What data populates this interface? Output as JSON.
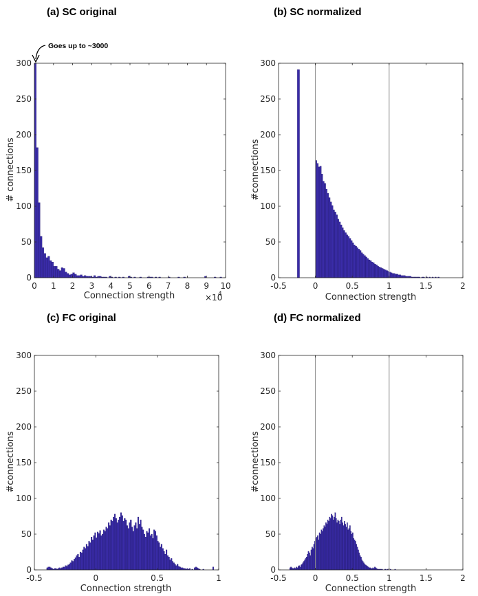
{
  "figure": {
    "bar_color": "#3a2ca8",
    "bar_edge": "#1a1266",
    "axis_color": "#262626",
    "vline_color": "#8c8c8c"
  },
  "chart_data": [
    {
      "type": "bar",
      "title": "(a)  SC original",
      "xlabel": "Connection strength",
      "ylabel": "# connections",
      "xlim": [
        0,
        10
      ],
      "ylim": [
        0,
        300
      ],
      "x_exponent": "×10",
      "x_exponent_power": "4",
      "xticks": [
        "0",
        "1",
        "2",
        "3",
        "4",
        "5",
        "6",
        "7",
        "8",
        "9",
        "10"
      ],
      "yticks": [
        "0",
        "50",
        "100",
        "150",
        "200",
        "250",
        "300"
      ],
      "annotation": "Goes up to ~3000",
      "bin_width": 0.1,
      "bin_start": 0,
      "values": [
        300,
        182,
        105,
        58,
        42,
        34,
        28,
        30,
        24,
        22,
        16,
        16,
        12,
        10,
        14,
        13,
        8,
        6,
        4,
        5,
        7,
        5,
        3,
        3,
        4,
        2,
        3,
        2,
        2,
        2,
        1,
        3,
        1,
        2,
        2,
        1,
        1,
        1,
        0,
        2,
        1,
        0,
        1,
        0,
        1,
        0,
        1,
        0,
        0,
        2,
        1,
        0,
        1,
        0,
        0,
        1,
        0,
        0,
        0,
        1,
        1,
        1,
        0,
        1,
        0,
        1,
        0,
        0,
        0,
        0,
        1,
        0,
        0,
        0,
        0,
        1,
        0,
        0,
        1,
        0,
        0,
        0,
        0,
        0,
        0,
        0,
        0,
        0,
        0,
        2,
        0,
        0,
        0,
        0,
        1,
        0,
        0,
        1,
        0,
        0
      ],
      "vlines": []
    },
    {
      "type": "bar",
      "title": "(b)  SC normalized",
      "xlabel": "Connection strength",
      "ylabel": "#connections",
      "xlim": [
        -0.5,
        2
      ],
      "ylim": [
        0,
        300
      ],
      "xticks": [
        "-0.5",
        "0",
        "0.5",
        "1",
        "1.5",
        "2"
      ],
      "yticks": [
        "0",
        "50",
        "100",
        "150",
        "200",
        "250",
        "300"
      ],
      "bin_width": 0.02,
      "bin_start": -0.04,
      "values": [
        0,
        0,
        164,
        160,
        155,
        156,
        145,
        135,
        132,
        124,
        118,
        112,
        106,
        101,
        95,
        92,
        88,
        82,
        78,
        74,
        70,
        66,
        63,
        60,
        58,
        55,
        52,
        49,
        46,
        44,
        42,
        40,
        38,
        35,
        33,
        31,
        29,
        27,
        25,
        24,
        22,
        21,
        19,
        18,
        16,
        15,
        14,
        13,
        12,
        11,
        10,
        9,
        8,
        7,
        6,
        6,
        5,
        5,
        4,
        4,
        3,
        3,
        3,
        2,
        2,
        2,
        2,
        1,
        1,
        1,
        1,
        1,
        1,
        0,
        1,
        1,
        0,
        1,
        0,
        1,
        0,
        1,
        0,
        1,
        0,
        1,
        0,
        0
      ],
      "spike": {
        "x": -0.23,
        "value": 291
      },
      "vlines": [
        0,
        1
      ]
    },
    {
      "type": "bar",
      "title": "(c) FC original",
      "xlabel": "Connection strength",
      "ylabel": "#connections",
      "xlim": [
        -0.5,
        1
      ],
      "ylim": [
        0,
        300
      ],
      "xticks": [
        "-0.5",
        "0",
        "0.5",
        "1"
      ],
      "yticks": [
        "0",
        "50",
        "100",
        "150",
        "200",
        "250",
        "300"
      ],
      "bin_width": 0.01,
      "bin_start": -0.4,
      "values": [
        3,
        4,
        4,
        3,
        2,
        1,
        2,
        2,
        1,
        2,
        3,
        2,
        3,
        4,
        4,
        6,
        5,
        7,
        8,
        10,
        13,
        12,
        15,
        17,
        20,
        22,
        18,
        25,
        24,
        28,
        32,
        30,
        36,
        33,
        40,
        38,
        46,
        42,
        48,
        52,
        45,
        53,
        51,
        55,
        48,
        50,
        56,
        54,
        60,
        58,
        66,
        62,
        70,
        68,
        74,
        78,
        72,
        66,
        70,
        74,
        80,
        76,
        68,
        72,
        70,
        62,
        58,
        66,
        70,
        60,
        54,
        62,
        66,
        58,
        74,
        64,
        70,
        60,
        56,
        50,
        46,
        54,
        52,
        58,
        48,
        50,
        44,
        56,
        54,
        48,
        40,
        38,
        32,
        36,
        30,
        26,
        22,
        28,
        20,
        18,
        14,
        16,
        12,
        10,
        8,
        6,
        8,
        5,
        4,
        3,
        3,
        2,
        2,
        1,
        2,
        1,
        2,
        0,
        1,
        0,
        3,
        4,
        3,
        2,
        1,
        0,
        0,
        1,
        0,
        0,
        0,
        0,
        0,
        0,
        0,
        4
      ],
      "vlines": []
    },
    {
      "type": "bar",
      "title": "(d)  FC normalized",
      "xlabel": "Connection strength",
      "ylabel": "#connections",
      "xlim": [
        -0.5,
        2
      ],
      "ylim": [
        0,
        300
      ],
      "xticks": [
        "-0.5",
        "0",
        "0.5",
        "1",
        "1.5",
        "2"
      ],
      "yticks": [
        "0",
        "50",
        "100",
        "150",
        "200",
        "250",
        "300"
      ],
      "bin_width": 0.0125,
      "bin_start": -0.35,
      "values": [
        3,
        4,
        3,
        2,
        2,
        3,
        2,
        4,
        3,
        5,
        6,
        4,
        7,
        8,
        10,
        12,
        14,
        16,
        18,
        22,
        26,
        24,
        20,
        28,
        32,
        30,
        36,
        40,
        44,
        46,
        48,
        42,
        52,
        50,
        56,
        54,
        58,
        62,
        60,
        66,
        64,
        70,
        68,
        74,
        72,
        78,
        76,
        70,
        74,
        80,
        72,
        66,
        70,
        68,
        64,
        70,
        74,
        66,
        62,
        68,
        64,
        60,
        66,
        56,
        58,
        62,
        54,
        50,
        52,
        44,
        42,
        40,
        36,
        32,
        28,
        24,
        20,
        18,
        14,
        12,
        10,
        8,
        7,
        6,
        5,
        4,
        3,
        3,
        2,
        2,
        3,
        2,
        4,
        3,
        2,
        1,
        1,
        1,
        1,
        1,
        1,
        0,
        0,
        1,
        1,
        0,
        1,
        0,
        0,
        1,
        0,
        0,
        0,
        0,
        1
      ],
      "vlines": [
        0,
        1
      ]
    }
  ]
}
